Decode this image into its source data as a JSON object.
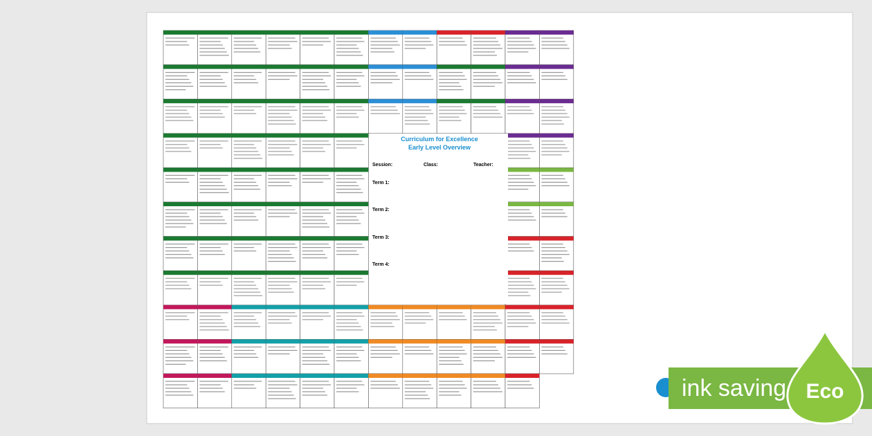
{
  "panel": {
    "title": "Curriculum for Excellence",
    "subtitle": "Early Level Overview",
    "fields": [
      "Session:",
      "Class:",
      "Teacher:"
    ],
    "terms": [
      "Term 1:",
      "Term 2:",
      "Term 3:",
      "Term 4:"
    ]
  },
  "badge": {
    "text": "ink saving",
    "leaf": "Eco"
  }
}
